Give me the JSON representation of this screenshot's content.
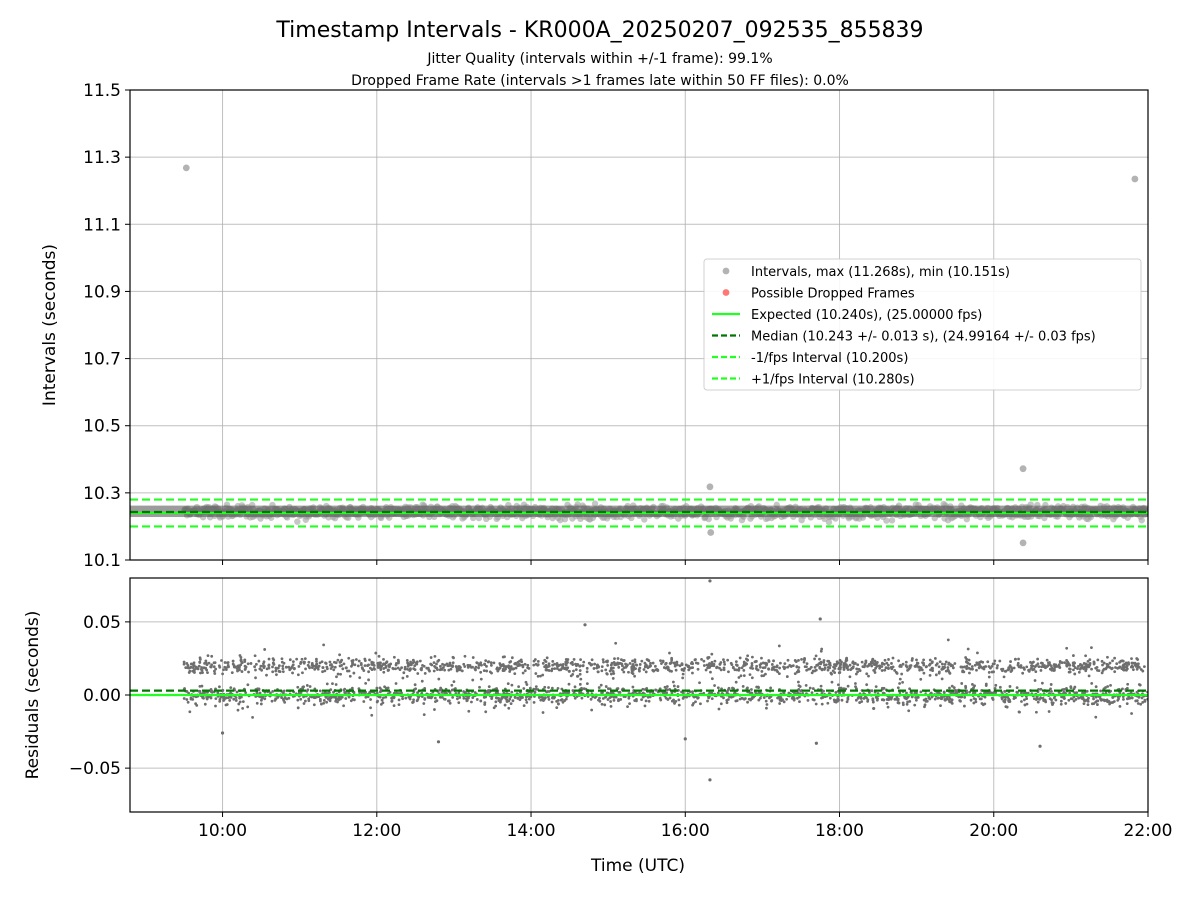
{
  "chart_data": {
    "title": "Timestamp Intervals - KR000A_20250207_092535_855839",
    "subtitle_lines": [
      "Jitter Quality (intervals within +/-1 frame): 99.1%",
      "Dropped Frame Rate (intervals >1 frames late within 50 FF files): 0.0%"
    ],
    "xlabel": "Time (UTC)",
    "x_tick_labels": [
      "10:00",
      "12:00",
      "14:00",
      "16:00",
      "18:00",
      "20:00",
      "22:00"
    ],
    "x_tick_hours": [
      10,
      12,
      14,
      16,
      18,
      20,
      22
    ],
    "x_range_hours": [
      8.8,
      22.0
    ],
    "data_x_range_hours": [
      9.5,
      22.0
    ],
    "grid": true,
    "panels": [
      {
        "type": "scatter",
        "ylabel": "Intervals (seconds)",
        "ylim": [
          10.1,
          11.5
        ],
        "y_ticks": [
          10.1,
          10.3,
          10.5,
          10.7,
          10.9,
          11.1,
          11.3,
          11.5
        ],
        "y_tick_labels": [
          "10.1",
          "10.3",
          "10.5",
          "10.7",
          "10.9",
          "11.1",
          "11.3",
          "11.5"
        ],
        "scatter_color": "#a0a0a0",
        "band_center": 10.243,
        "band_halfwidth": 0.04,
        "outliers": [
          {
            "x": 9.53,
            "y": 11.268
          },
          {
            "x": 21.83,
            "y": 11.235
          },
          {
            "x": 20.38,
            "y": 10.372
          },
          {
            "x": 20.38,
            "y": 10.151
          },
          {
            "x": 16.32,
            "y": 10.318
          },
          {
            "x": 16.33,
            "y": 10.182
          }
        ],
        "hlines": [
          {
            "y": 10.24,
            "style": "solid",
            "color": "#22ff22",
            "name": "Expected (10.240s), (25.00000 fps)"
          },
          {
            "y": 10.243,
            "style": "dashed",
            "color": "#007700",
            "name": "Median (10.243 +/- 0.013 s), (24.99164 +/- 0.03 fps)"
          },
          {
            "y": 10.2,
            "style": "dashed",
            "color": "#22ff22",
            "name": "-1/fps Interval (10.200s)"
          },
          {
            "y": 10.28,
            "style": "dashed",
            "color": "#22ff22",
            "name": "+1/fps Interval (10.280s)"
          }
        ],
        "legend": {
          "position": "center-right",
          "entries": [
            {
              "label": "Intervals, max (11.268s), min (10.151s)",
              "kind": "marker",
              "color": "#a0a0a0"
            },
            {
              "label": "Possible Dropped Frames",
              "kind": "marker",
              "color": "#ff5555"
            },
            {
              "label": "Expected (10.240s), (25.00000 fps)",
              "kind": "solid",
              "color": "#22ff22"
            },
            {
              "label": "Median (10.243 +/- 0.013 s), (24.99164 +/- 0.03 fps)",
              "kind": "dashed",
              "color": "#007700"
            },
            {
              "label": "-1/fps Interval (10.200s)",
              "kind": "dashed",
              "color": "#22ff22"
            },
            {
              "label": "+1/fps Interval (10.280s)",
              "kind": "dashed",
              "color": "#22ff22"
            }
          ]
        }
      },
      {
        "type": "scatter",
        "ylabel": "Residuals (seconds)",
        "ylim": [
          -0.08,
          0.08
        ],
        "y_ticks": [
          -0.05,
          0.0,
          0.05
        ],
        "y_tick_labels": [
          "−0.05",
          "0.00",
          "0.05"
        ],
        "scatter_color": "#6e6e6e",
        "clusters": [
          {
            "center": 0.02,
            "spread": 0.005
          },
          {
            "center": 0.0,
            "spread": 0.006
          }
        ],
        "outliers": [
          {
            "x": 16.32,
            "y": 0.078
          },
          {
            "x": 16.32,
            "y": -0.058
          },
          {
            "x": 17.75,
            "y": 0.052
          },
          {
            "x": 14.7,
            "y": 0.048
          },
          {
            "x": 20.6,
            "y": -0.035
          },
          {
            "x": 12.8,
            "y": -0.032
          },
          {
            "x": 17.7,
            "y": -0.033
          },
          {
            "x": 10.0,
            "y": -0.026
          },
          {
            "x": 16.0,
            "y": -0.03
          }
        ],
        "hlines": [
          {
            "y": 0.0,
            "style": "solid",
            "color": "#22ff22"
          },
          {
            "y": 0.003,
            "style": "dashed",
            "color": "#007700"
          }
        ]
      }
    ]
  }
}
